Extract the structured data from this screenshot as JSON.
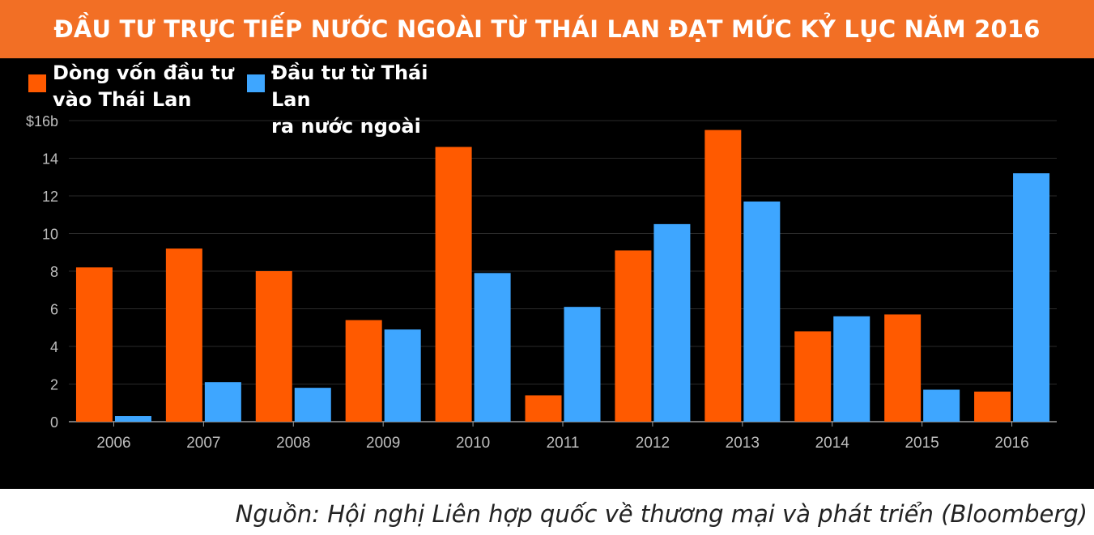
{
  "title": "ĐẦU TƯ TRỰC TIẾP NƯỚC NGOÀI TỪ THÁI LAN ĐẠT MỨC KỶ LỤC NĂM 2016",
  "legend": [
    {
      "line1": "Dòng vốn đầu tư",
      "line2": "vào Thái Lan",
      "color": "#ff5a00"
    },
    {
      "line1": "Đầu tư từ Thái Lan",
      "line2": "ra nước ngoài",
      "color": "#3ea6ff"
    }
  ],
  "source": "Nguồn:  Hội nghị Liên hợp quốc về thương mại và phát triển (Bloomberg)",
  "chart_data": {
    "type": "bar",
    "title": "ĐẦU TƯ TRỰC TIẾP NƯỚC NGOÀI TỪ THÁI LAN ĐẠT MỨC KỶ LỤC NĂM 2016",
    "categories": [
      "2006",
      "2007",
      "2008",
      "2009",
      "2010",
      "2011",
      "2012",
      "2013",
      "2014",
      "2015",
      "2016"
    ],
    "series": [
      {
        "name": "Dòng vốn đầu tư vào Thái Lan",
        "color": "#ff5a00",
        "values": [
          8.2,
          9.2,
          8.0,
          5.4,
          14.6,
          1.4,
          9.1,
          15.5,
          4.8,
          5.7,
          1.6
        ]
      },
      {
        "name": "Đầu tư từ Thái Lan ra nước ngoài",
        "color": "#3ea6ff",
        "values": [
          0.3,
          2.1,
          1.8,
          4.9,
          7.9,
          6.1,
          10.5,
          11.7,
          5.6,
          1.7,
          13.2
        ]
      }
    ],
    "y_ticks": [
      "0",
      "2",
      "4",
      "6",
      "8",
      "10",
      "12",
      "14",
      "$16b"
    ],
    "ylim": [
      0,
      16
    ],
    "grid": true,
    "legend_position": "top-left",
    "xlabel": "",
    "ylabel": ""
  }
}
